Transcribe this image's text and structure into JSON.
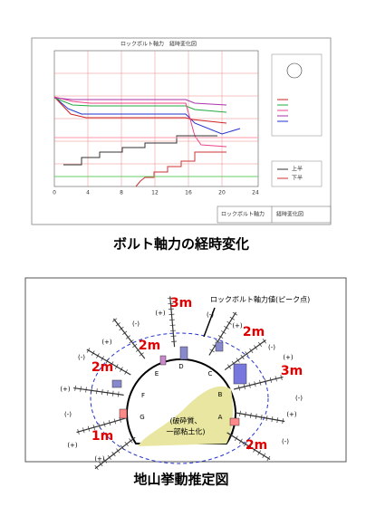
{
  "chart_panel": {
    "title": "ロックボルト軸力　経時変化図",
    "x_ticks": [
      0,
      4,
      8,
      12,
      16,
      20,
      24
    ],
    "legend_lines": [
      "上半",
      "下半"
    ],
    "footer": [
      "ロックボルト軸力",
      "経時変化図"
    ],
    "caption": "ボルト軸力の経時変化"
  },
  "diagram_panel": {
    "callout": "ロックボルト軸力値(ピーク点)",
    "lengths": [
      "3m",
      "2m",
      "2m",
      "3m",
      "2m",
      "1m",
      "2m"
    ],
    "points": [
      "A",
      "B",
      "C",
      "D",
      "E",
      "F",
      "G"
    ],
    "zone_label": [
      "(破砕質、",
      "一部粘土化)"
    ],
    "signs": [
      "(+)",
      "(-)",
      "(+)",
      "(-)",
      "(+)",
      "(-)",
      "(+)",
      "(+)",
      "(-)",
      "(+)",
      "(-)",
      "(+)",
      "(-)",
      "(+)",
      "(-)"
    ],
    "caption": "地山挙動推定図"
  }
}
